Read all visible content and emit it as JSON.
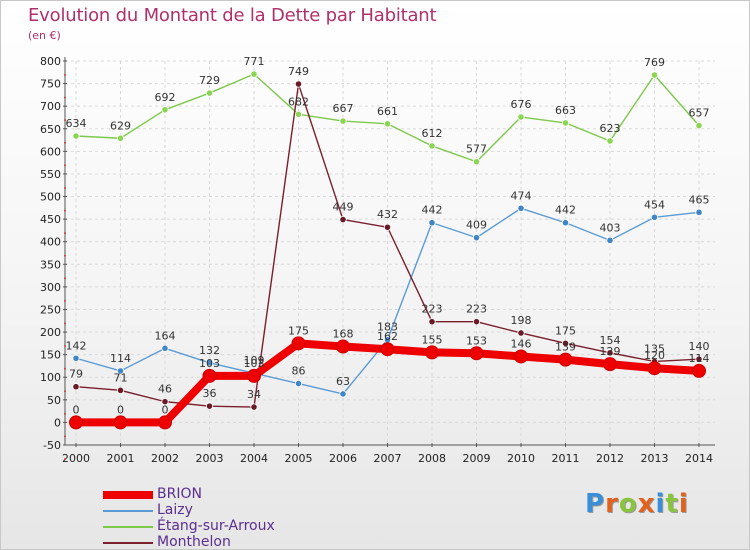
{
  "header": {
    "title": "Evolution du Montant de la Dette par Habitant",
    "unit": "(en €)"
  },
  "logo": {
    "text": "Proxiti",
    "letter_colors": [
      "#3a8fd8",
      "#e2611c",
      "#8ac43f",
      "#e2611c",
      "#3a8fd8",
      "#8ac43f",
      "#e2611c"
    ]
  },
  "chart_data": {
    "type": "line",
    "title": "Evolution du Montant de la Dette par Habitant",
    "ylabel": "(en €)",
    "xlabel": "",
    "x": [
      "2000",
      "2001",
      "2002",
      "2003",
      "2004",
      "2005",
      "2006",
      "2007",
      "2008",
      "2009",
      "2010",
      "2011",
      "2012",
      "2013",
      "2014"
    ],
    "ylim": [
      -50,
      800
    ],
    "yticks": [
      -50,
      0,
      50,
      100,
      150,
      200,
      250,
      300,
      350,
      400,
      450,
      500,
      550,
      600,
      650,
      700,
      750,
      800
    ],
    "grid": true,
    "legend": "bottom-left",
    "series": [
      {
        "name": "Étang-sur-Arroux",
        "color": "#7dc94a",
        "marker": "#8ad552",
        "values": [
          634,
          629,
          692,
          729,
          771,
          682,
          667,
          661,
          612,
          577,
          676,
          663,
          623,
          769,
          657
        ]
      },
      {
        "name": "Laizy",
        "color": "#5a9bd5",
        "marker": "#3f86c8",
        "values": [
          142,
          114,
          164,
          132,
          109,
          86,
          63,
          183,
          442,
          409,
          474,
          442,
          403,
          454,
          465
        ]
      },
      {
        "name": "Monthelon",
        "color": "#7a1f2c",
        "marker": "#6a1a26",
        "values": [
          79,
          71,
          46,
          36,
          34,
          749,
          449,
          432,
          223,
          223,
          198,
          175,
          154,
          135,
          140
        ]
      },
      {
        "name": "BRION",
        "color": "#ee0000",
        "marker": "#ee0000",
        "values": [
          0,
          0,
          0,
          103,
          103,
          175,
          168,
          162,
          155,
          153,
          146,
          139,
          129,
          120,
          114
        ]
      }
    ],
    "legend_order": [
      "BRION",
      "Laizy",
      "Étang-sur-Arroux",
      "Monthelon"
    ]
  }
}
